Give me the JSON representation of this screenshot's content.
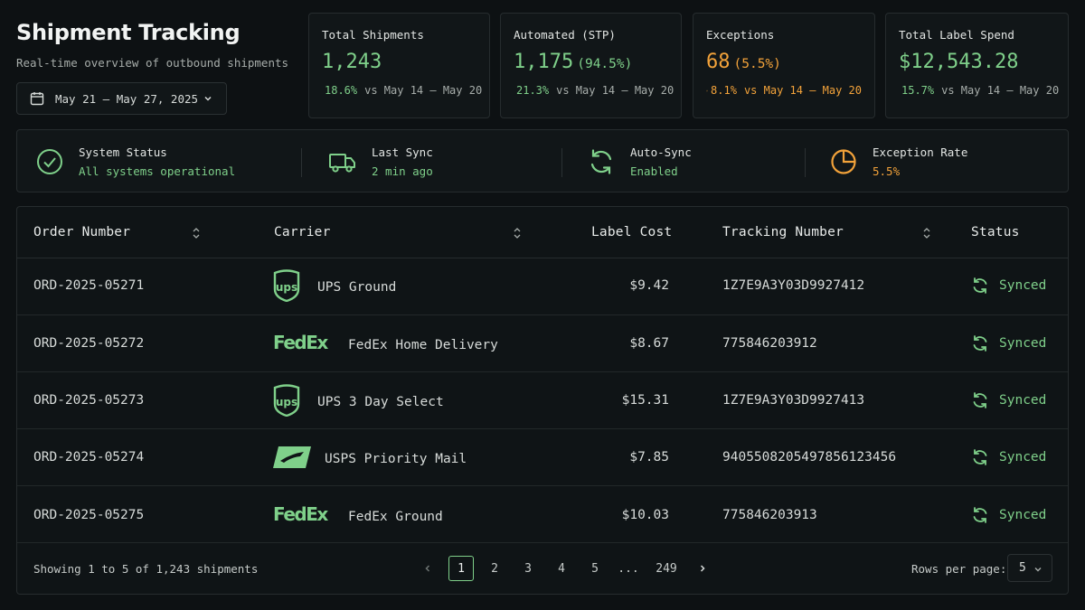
{
  "header": {
    "title": "Shipment Tracking",
    "subtitle": "Real-time overview of outbound shipments",
    "date_range": "May 21 – May 27, 2025"
  },
  "kpis": [
    {
      "label": "Total Shipments",
      "value": "1,243",
      "pct": "",
      "delta": "18.6%",
      "direction": "up",
      "vs": "vs May 14 – May 20",
      "tone": "positive"
    },
    {
      "label": "Automated (STP)",
      "value": "1,175",
      "pct": "(94.5%)",
      "delta": "21.3%",
      "direction": "up",
      "vs": "vs May 14 – May 20",
      "tone": "positive"
    },
    {
      "label": "Exceptions",
      "value": "68",
      "pct": "(5.5%)",
      "delta": "8.1%",
      "direction": "down",
      "vs": "vs May 14 – May 20",
      "tone": "warning"
    },
    {
      "label": "Total Label Spend",
      "value": "$12,543.28",
      "pct": "",
      "delta": "15.7%",
      "direction": "up",
      "vs": "vs May 14 – May 20",
      "tone": "positive"
    }
  ],
  "status": {
    "system": {
      "label": "System Status",
      "value": "All systems operational",
      "icon": "check-circle-icon"
    },
    "sync": {
      "label": "Last Sync",
      "value": "2 min ago",
      "icon": "truck-icon"
    },
    "auto_sync": {
      "label": "Auto-Sync",
      "value": "Enabled",
      "icon": "refresh-icon"
    },
    "exception_rate": {
      "label": "Exception Rate",
      "value": "5.5%",
      "icon": "pie-chart-icon"
    }
  },
  "table": {
    "columns": {
      "order": "Order Number",
      "carrier": "Carrier",
      "cost": "Label Cost",
      "tracking": "Tracking Number",
      "status": "Status"
    },
    "rows": [
      {
        "order": "ORD-2025-05271",
        "carrier_logo": "ups-logo",
        "logo_text": "ups",
        "carrier": "UPS Ground",
        "cost": "$9.42",
        "tracking": "1Z7E9A3Y03D9927412",
        "status": "Synced"
      },
      {
        "order": "ORD-2025-05272",
        "carrier_logo": "fedex-logo",
        "logo_text": "FedEx",
        "carrier": "FedEx Home Delivery",
        "cost": "$8.67",
        "tracking": "775846203912",
        "status": "Synced"
      },
      {
        "order": "ORD-2025-05273",
        "carrier_logo": "ups-logo",
        "logo_text": "ups",
        "carrier": "UPS 3 Day Select",
        "cost": "$15.31",
        "tracking": "1Z7E9A3Y03D9927413",
        "status": "Synced"
      },
      {
        "order": "ORD-2025-05274",
        "carrier_logo": "usps-logo",
        "logo_text": "",
        "carrier": "USPS Priority Mail",
        "cost": "$7.85",
        "tracking": "9405508205497856123456",
        "status": "Synced"
      },
      {
        "order": "ORD-2025-05275",
        "carrier_logo": "fedex-logo",
        "logo_text": "FedEx",
        "carrier": "FedEx Ground",
        "cost": "$10.03",
        "tracking": "775846203913",
        "status": "Synced"
      }
    ]
  },
  "footer": {
    "showing": "Showing 1 to 5 of 1,243 shipments",
    "pages": [
      "1",
      "2",
      "3",
      "4",
      "5",
      "...",
      "249"
    ],
    "current_page": "1",
    "rows_label": "Rows per page:",
    "rows_value": "5"
  },
  "colors": {
    "accent": "#7fd08a",
    "warning": "#f2a23a",
    "background": "#0d1113",
    "card": "#111618"
  }
}
